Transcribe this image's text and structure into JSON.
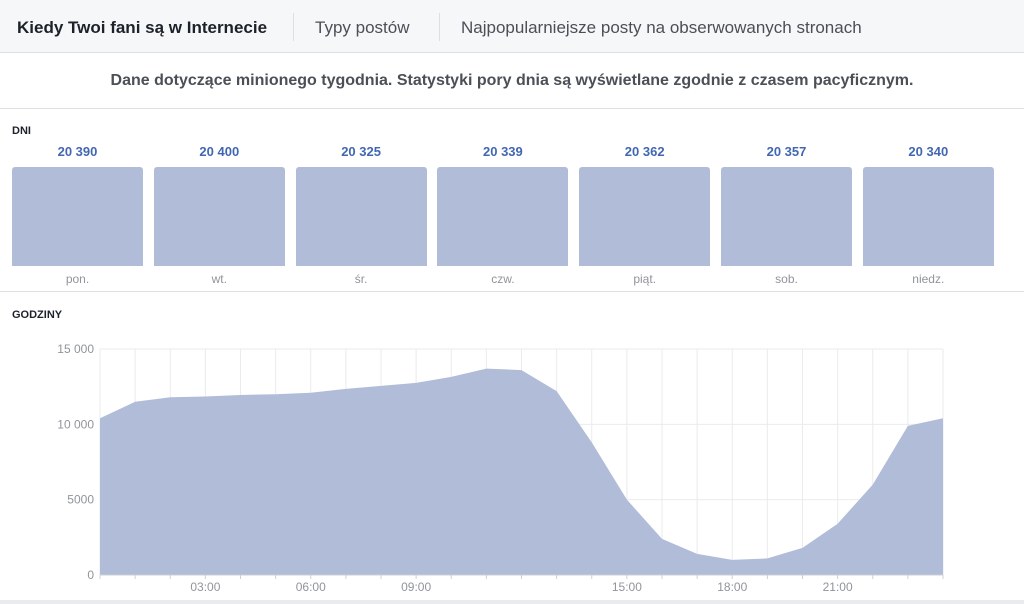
{
  "tabs": [
    {
      "label": "Kiedy Twoi fani są w Internecie",
      "active": true
    },
    {
      "label": "Typy postów",
      "active": false
    },
    {
      "label": "Najpopularniejsze posty na obserwowanych stronach",
      "active": false
    }
  ],
  "note": "Dane dotyczące minionego tygodnia. Statystyki pory dnia są wyświetlane zgodnie z czasem pacyficznym.",
  "days_section": {
    "label": "DNI",
    "days": [
      {
        "label": "pon.",
        "value": "20 390"
      },
      {
        "label": "wt.",
        "value": "20 400"
      },
      {
        "label": "śr.",
        "value": "20 325"
      },
      {
        "label": "czw.",
        "value": "20 339"
      },
      {
        "label": "piąt.",
        "value": "20 362"
      },
      {
        "label": "sob.",
        "value": "20 357"
      },
      {
        "label": "niedz.",
        "value": "20 340"
      }
    ]
  },
  "hours_section": {
    "label": "GODZINY"
  },
  "colors": {
    "bar": "#b0bcd8",
    "area": "#b0bcd8",
    "value_text": "#4267b2"
  },
  "chart_data": {
    "type": "area",
    "x": [
      0,
      1,
      2,
      3,
      4,
      5,
      6,
      7,
      8,
      9,
      10,
      11,
      12,
      13,
      14,
      15,
      16,
      17,
      18,
      19,
      20,
      21,
      22,
      23,
      24
    ],
    "values": [
      10400,
      11500,
      11800,
      11850,
      11950,
      12000,
      12100,
      12350,
      12550,
      12750,
      13150,
      13700,
      13600,
      12200,
      8800,
      5000,
      2400,
      1400,
      1000,
      1100,
      1800,
      3400,
      6000,
      9900,
      10400
    ],
    "ylim": [
      0,
      15000
    ],
    "yticks": [
      0,
      5000,
      10000,
      15000
    ],
    "ytick_labels": [
      "0",
      "5000",
      "10 000",
      "15 000"
    ],
    "xticks": [
      3,
      6,
      9,
      15,
      18,
      21
    ],
    "xtick_labels": [
      "03:00",
      "06:00",
      "09:00",
      "15:00",
      "18:00",
      "21:00"
    ],
    "grid": true
  }
}
